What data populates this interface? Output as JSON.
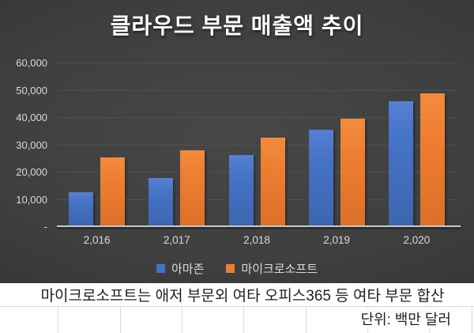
{
  "chart_data": {
    "type": "bar",
    "title": "클라우드 부문 매출액 추이",
    "categories": [
      "2,016",
      "2,017",
      "2,018",
      "2,019",
      "2,020"
    ],
    "series": [
      {
        "name": "아마존",
        "color": "#4472C4",
        "values": [
          12200,
          17500,
          25700,
          35000,
          45400
        ]
      },
      {
        "name": "마이크로소프트",
        "color": "#ED7D31",
        "values": [
          25000,
          27400,
          32200,
          39000,
          48400
        ]
      }
    ],
    "xlabel": "",
    "ylabel": "",
    "ylim": [
      0,
      60000
    ],
    "ytick_step": 10000,
    "ytick_labels": [
      "-",
      "10,000",
      "20,000",
      "30,000",
      "40,000",
      "50,000",
      "60,000"
    ],
    "grid": true,
    "legend_position": "bottom"
  },
  "footnote": "마이크로소프트는 애저 부문외 여타 오피스365 등 여타 부문 합산",
  "unit_label": "단위: 백만 달러",
  "colors": {
    "amazon": "#4472C4",
    "microsoft": "#ED7D31",
    "chart_background": "#3f3f3f",
    "axis_text": "#d9d9d9",
    "title_text": "#ffffff",
    "sheet_gridline": "#d9d9d9"
  }
}
